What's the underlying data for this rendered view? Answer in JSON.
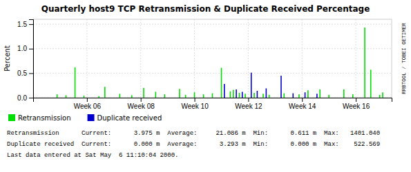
{
  "chart_data": {
    "type": "bar",
    "title": "Quarterly host9 TCP Retransmission & Duplicate Received Percentage",
    "y_label": "Percent",
    "x": [
      8,
      11,
      14,
      17,
      22,
      24,
      29,
      33,
      37,
      41,
      44,
      49,
      51,
      54,
      57,
      60,
      63,
      64,
      66,
      67,
      68,
      69,
      70,
      71,
      73,
      74,
      75,
      77,
      78,
      79,
      83,
      84,
      87,
      89,
      91,
      92,
      95,
      96,
      99,
      104,
      107,
      111,
      113,
      116,
      117
    ],
    "series": [
      {
        "name": "Retransmission",
        "color": "#00dd00",
        "values": [
          0.07,
          0.05,
          0.62,
          0.04,
          0.03,
          0.22,
          0.08,
          0.05,
          0.2,
          0.12,
          0.07,
          0.18,
          0.06,
          0.11,
          0.07,
          0.09,
          0.61,
          null,
          0.13,
          0.16,
          null,
          0.1,
          null,
          0.08,
          null,
          0.1,
          null,
          0.08,
          null,
          0.06,
          null,
          0.09,
          null,
          0.07,
          null,
          0.15,
          null,
          0.17,
          0.06,
          0.17,
          0.07,
          1.43,
          0.57,
          0.06,
          0.11
        ]
      },
      {
        "name": "Duplicate received",
        "color": "#0000cc",
        "values": [
          null,
          null,
          null,
          null,
          null,
          null,
          null,
          null,
          null,
          null,
          null,
          null,
          null,
          null,
          null,
          null,
          null,
          0.28,
          null,
          null,
          0.17,
          null,
          0.12,
          null,
          0.51,
          null,
          0.14,
          null,
          0.19,
          null,
          0.45,
          null,
          0.09,
          null,
          0.11,
          null,
          0.08,
          null,
          null,
          null,
          null,
          null,
          null,
          null,
          null
        ]
      }
    ],
    "xlim": [
      0,
      120
    ],
    "xticks": [
      {
        "value": 18,
        "label": "Week 06"
      },
      {
        "value": 36,
        "label": "Week 08"
      },
      {
        "value": 54,
        "label": "Week 10"
      },
      {
        "value": 72,
        "label": "Week 12"
      },
      {
        "value": 90,
        "label": "Week 14"
      },
      {
        "value": 108,
        "label": "Week 16"
      }
    ],
    "ylim": [
      0.0,
      1.6
    ],
    "yticks": [
      {
        "value": 0,
        "label": "0.0"
      },
      0.5,
      {
        "value": 1,
        "label": "1.0"
      },
      1.5
    ],
    "grid": true,
    "legend": "bottom",
    "annotations": [
      "RRBTOOL / TOBEI OETIMER",
      "Retransmission      Current:      3.975 m  Average:     21.086 m  Min:      0.611 m  Max:   1401.040",
      "Duplicate received  Current:      0.000 m  Average:      3.293 m  Min:      0.000 m  Max:    522.569",
      "Last data entered at Sat May  6 11:10:04 2000."
    ]
  }
}
